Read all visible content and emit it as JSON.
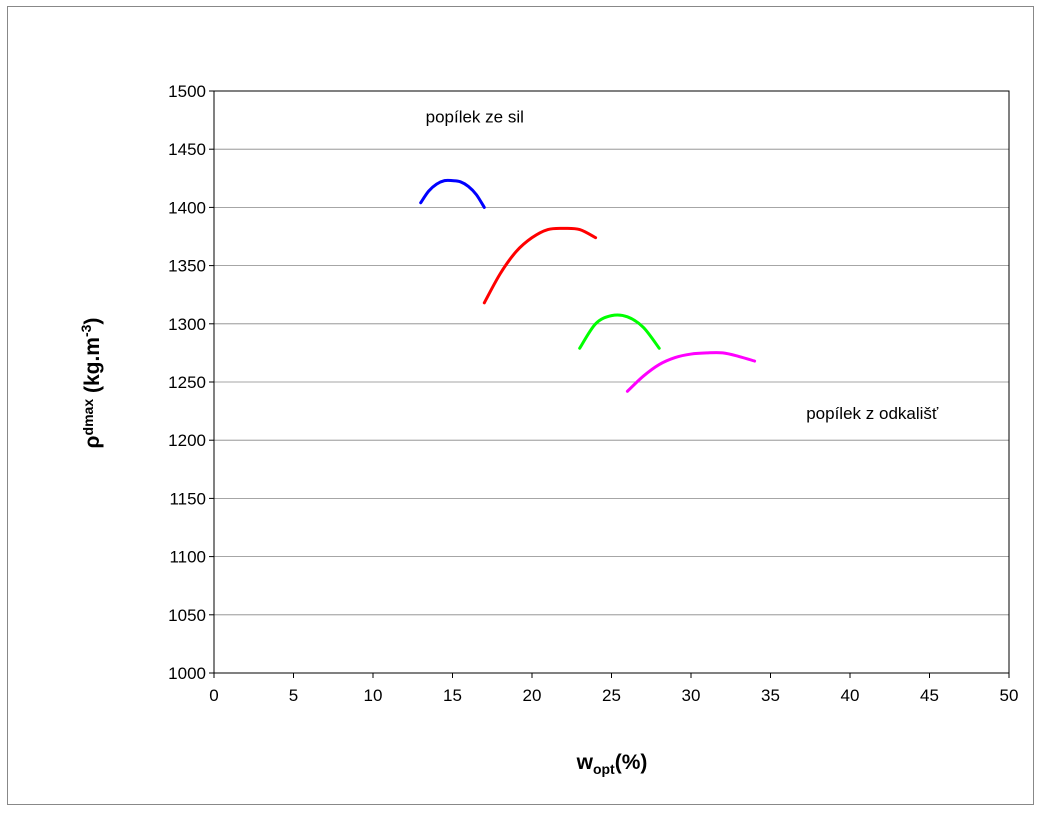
{
  "chart_data": {
    "type": "line",
    "xlabel": {
      "main": "w",
      "sub": "opt",
      "suffix": "(%)"
    },
    "ylabel": {
      "main": "ρ",
      "sub": "dmax",
      "suffix": " (kg.m",
      "sup": "-3",
      "close": ")"
    },
    "xlim": [
      0,
      50
    ],
    "ylim": [
      1000,
      1500
    ],
    "xticks": [
      0,
      5,
      10,
      15,
      20,
      25,
      30,
      35,
      40,
      45,
      50
    ],
    "yticks": [
      1000,
      1050,
      1100,
      1150,
      1200,
      1250,
      1300,
      1350,
      1400,
      1450,
      1500
    ],
    "grid": "horizontal",
    "legend": "none",
    "annotations": [
      {
        "text": "popílek ze sil",
        "x": 16.4,
        "y": 1473
      },
      {
        "text": "popílek z odkališť",
        "x": 41.4,
        "y": 1218
      }
    ],
    "series": [
      {
        "color": "#0000ff",
        "x": [
          13,
          13.5,
          14,
          14.5,
          15,
          15.5,
          16,
          16.5,
          17
        ],
        "y": [
          1404,
          1414,
          1420,
          1423,
          1423,
          1422,
          1418,
          1411,
          1400
        ]
      },
      {
        "color": "#ff0000",
        "x": [
          17,
          18,
          19,
          20,
          21,
          22,
          23,
          24
        ],
        "y": [
          1318,
          1343,
          1362,
          1374,
          1381,
          1382,
          1381,
          1374
        ]
      },
      {
        "color": "#00ff00",
        "x": [
          23,
          24,
          25,
          26,
          27,
          28
        ],
        "y": [
          1279,
          1300,
          1307,
          1306,
          1297,
          1279
        ]
      },
      {
        "color": "#ff00ff",
        "x": [
          26,
          27,
          28,
          29,
          30,
          31,
          32,
          33,
          34
        ],
        "y": [
          1242,
          1255,
          1265,
          1271,
          1274,
          1275,
          1275,
          1272,
          1268
        ]
      }
    ]
  }
}
